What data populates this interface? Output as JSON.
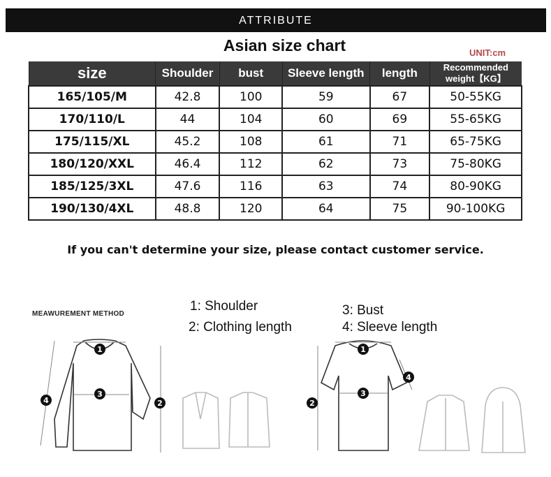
{
  "banner": "ATTRIBUTE",
  "title": "Asian size chart",
  "unit": "UNIT:cm",
  "table": {
    "headers": [
      "size",
      "Shoulder",
      "bust",
      "Sleeve length",
      "length",
      "Recommended weight【KG】"
    ],
    "rows": [
      [
        "165/105/M",
        "42.8",
        "100",
        "59",
        "67",
        "50-55KG"
      ],
      [
        "170/110/L",
        "44",
        "104",
        "60",
        "69",
        "55-65KG"
      ],
      [
        "175/115/XL",
        "45.2",
        "108",
        "61",
        "71",
        "65-75KG"
      ],
      [
        "180/120/XXL",
        "46.4",
        "112",
        "62",
        "73",
        "75-80KG"
      ],
      [
        "185/125/3XL",
        "47.6",
        "116",
        "63",
        "74",
        "80-90KG"
      ],
      [
        "190/130/4XL",
        "48.8",
        "120",
        "64",
        "75",
        "90-100KG"
      ]
    ]
  },
  "note": "If you can't determine your size, please contact customer service.",
  "method_label": "MEAWUREMENT METHOD",
  "legend": [
    "1:  Shoulder",
    "2:  Clothing length",
    "3:  Bust",
    "4:  Sleeve length"
  ],
  "markers": [
    "1",
    "2",
    "3",
    "4"
  ]
}
